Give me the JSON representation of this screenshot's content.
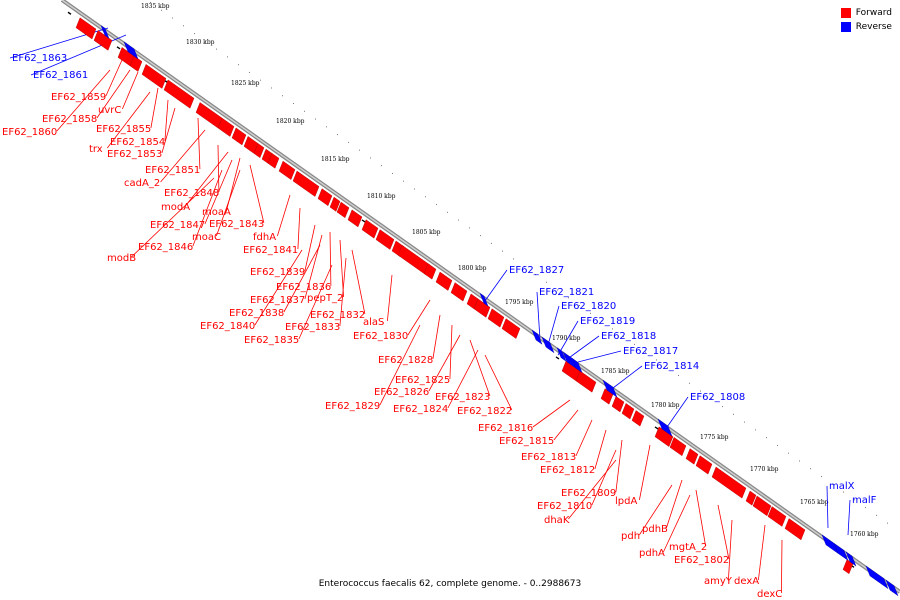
{
  "legend": {
    "forward_label": "Forward",
    "reverse_label": "Reverse",
    "forward_color": "#ff0000",
    "reverse_color": "#0000ff"
  },
  "caption": "Enterococcus faecalis 62, complete genome. - 0..2988673",
  "scale_ticks": [
    {
      "label": "1835 kbp",
      "kbp": 1835
    },
    {
      "label": "1830 kbp",
      "kbp": 1830
    },
    {
      "label": "1825 kbp",
      "kbp": 1825
    },
    {
      "label": "1820 kbp",
      "kbp": 1820
    },
    {
      "label": "1815 kbp",
      "kbp": 1815
    },
    {
      "label": "1810 kbp",
      "kbp": 1810
    },
    {
      "label": "1805 kbp",
      "kbp": 1805
    },
    {
      "label": "1800 kbp",
      "kbp": 1800
    },
    {
      "label": "1795 kbp",
      "kbp": 1795
    },
    {
      "label": "1790 kbp",
      "kbp": 1790
    },
    {
      "label": "1785 kbp",
      "kbp": 1785
    },
    {
      "label": "1780 kbp",
      "kbp": 1780
    },
    {
      "label": "1775 kbp",
      "kbp": 1775
    },
    {
      "label": "1770 kbp",
      "kbp": 1770
    },
    {
      "label": "1765 kbp",
      "kbp": 1765
    },
    {
      "label": "1760 kbp",
      "kbp": 1760
    }
  ],
  "forward_labels": [
    "EF62_1859",
    "uvrC",
    "EF62_1858",
    "EF62_1860",
    "EF62_1855",
    "trx",
    "EF62_1854",
    "EF62_1853",
    "EF62_1851",
    "cadA_2",
    "EF62_1848",
    "modA",
    "moaA",
    "EF62_1847",
    "EF62_1843",
    "moaC",
    "fdhA",
    "EF62_1846",
    "modB",
    "EF62_1841",
    "EF62_1839",
    "EF62_1836",
    "pepT_2",
    "EF62_1837",
    "EF62_1838",
    "EF62_1832",
    "EF62_1840",
    "EF62_1833",
    "alaS",
    "EF62_1835",
    "EF62_1830",
    "EF62_1828",
    "EF62_1825",
    "EF62_1826",
    "EF62_1823",
    "EF62_1829",
    "EF62_1824",
    "EF62_1822",
    "EF62_1816",
    "EF62_1815",
    "EF62_1813",
    "EF62_1812",
    "EF62_1809",
    "lpdA",
    "EF62_1810",
    "dhaK",
    "pdhB",
    "pdh",
    "mgtA_2",
    "pdhA",
    "EF62_1802",
    "amyY",
    "dexA",
    "dexC"
  ],
  "reverse_labels": [
    "EF62_1863",
    "EF62_1861",
    "EF62_1827",
    "EF62_1821",
    "EF62_1820",
    "EF62_1819",
    "EF62_1818",
    "EF62_1817",
    "EF62_1814",
    "EF62_1808",
    "malX",
    "malF"
  ]
}
